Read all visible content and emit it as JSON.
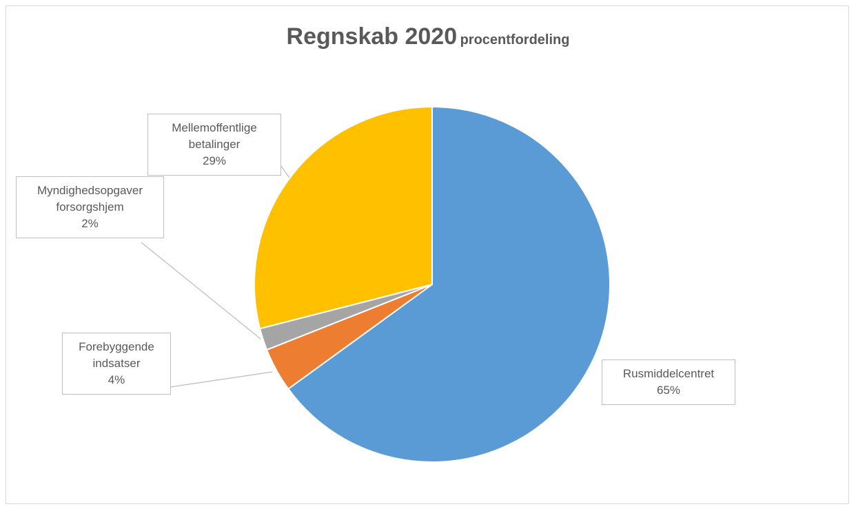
{
  "chart_data": {
    "type": "pie",
    "title": "Regnskab 2020",
    "subtitle": "procentfordeling",
    "categories": [
      "Rusmiddelcentret",
      "Forebyggende indsatser",
      "Myndighedsopgaver forsorgshjem",
      "Mellemoffentlige betalinger"
    ],
    "values": [
      65,
      4,
      2,
      29
    ],
    "value_labels": [
      "65%",
      "4%",
      "2%",
      "29%"
    ],
    "colors": [
      "#5b9bd5",
      "#ed7d31",
      "#a5a5a5",
      "#ffc000"
    ]
  }
}
